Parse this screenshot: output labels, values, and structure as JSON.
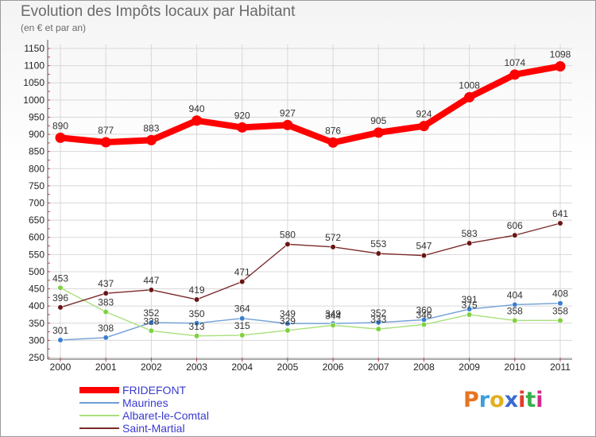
{
  "title": "Evolution des Impôts locaux par Habitant",
  "subtitle": "(en € et par an)",
  "logo": {
    "letters": [
      "P",
      "r",
      "o",
      "x",
      "i",
      "t",
      "i"
    ],
    "colors": [
      "#e8731f",
      "#3aa0d8",
      "#e0b020",
      "#3c6bd0",
      "#e33b2a",
      "#39b04a",
      "#d02a8a"
    ]
  },
  "chart_data": {
    "type": "line",
    "title": "Evolution des Impôts locaux par Habitant",
    "subtitle": "(en € et par an)",
    "xlabel": "",
    "ylabel": "",
    "x": [
      "2000",
      "2001",
      "2002",
      "2003",
      "2004",
      "2005",
      "2006",
      "2007",
      "2008",
      "2009",
      "2010",
      "2011"
    ],
    "ylim": [
      250,
      1150
    ],
    "ytick_step": 50,
    "yticks": [
      "250",
      "300",
      "350",
      "400",
      "450",
      "500",
      "550",
      "600",
      "650",
      "700",
      "750",
      "800",
      "850",
      "900",
      "950",
      "1000",
      "1050",
      "1100",
      "1150"
    ],
    "legend_position": "bottom-left",
    "series": [
      {
        "name": "FRIDEFONT",
        "color": "#ff0000",
        "marker_color": "#ff0000",
        "values": [
          890,
          877,
          883,
          940,
          920,
          927,
          876,
          905,
          924,
          1008,
          1074,
          1098
        ],
        "labels": [
          "890",
          "877",
          "883",
          "940",
          "920",
          "927",
          "876",
          "905",
          "924",
          "1008",
          "1074",
          "1098"
        ]
      },
      {
        "name": "Maurines",
        "color": "#6f9fd6",
        "marker_color": "#3b7fd0",
        "values": [
          301,
          308,
          352,
          350,
          364,
          349,
          349,
          352,
          360,
          391,
          404,
          408
        ],
        "labels": [
          "301",
          "308",
          "352",
          "350",
          "364",
          "349",
          "349",
          "352",
          "360",
          "391",
          "404",
          "408"
        ]
      },
      {
        "name": "Albaret-le-Comtal",
        "color": "#a9e07d",
        "marker_color": "#7ed13f",
        "values": [
          453,
          383,
          328,
          313,
          315,
          329,
          344,
          333,
          346,
          375,
          358,
          358
        ],
        "labels": [
          "453",
          "383",
          "328",
          "313",
          "315",
          "329",
          "344",
          "333",
          "346",
          "375",
          "358",
          "358"
        ]
      },
      {
        "name": "Saint-Martial",
        "color": "#7a2a2a",
        "marker_color": "#6a1515",
        "values": [
          396,
          437,
          447,
          419,
          471,
          580,
          572,
          553,
          547,
          583,
          606,
          641
        ],
        "labels": [
          "396",
          "437",
          "447",
          "419",
          "471",
          "580",
          "572",
          "553",
          "547",
          "583",
          "606",
          "641"
        ]
      }
    ]
  }
}
